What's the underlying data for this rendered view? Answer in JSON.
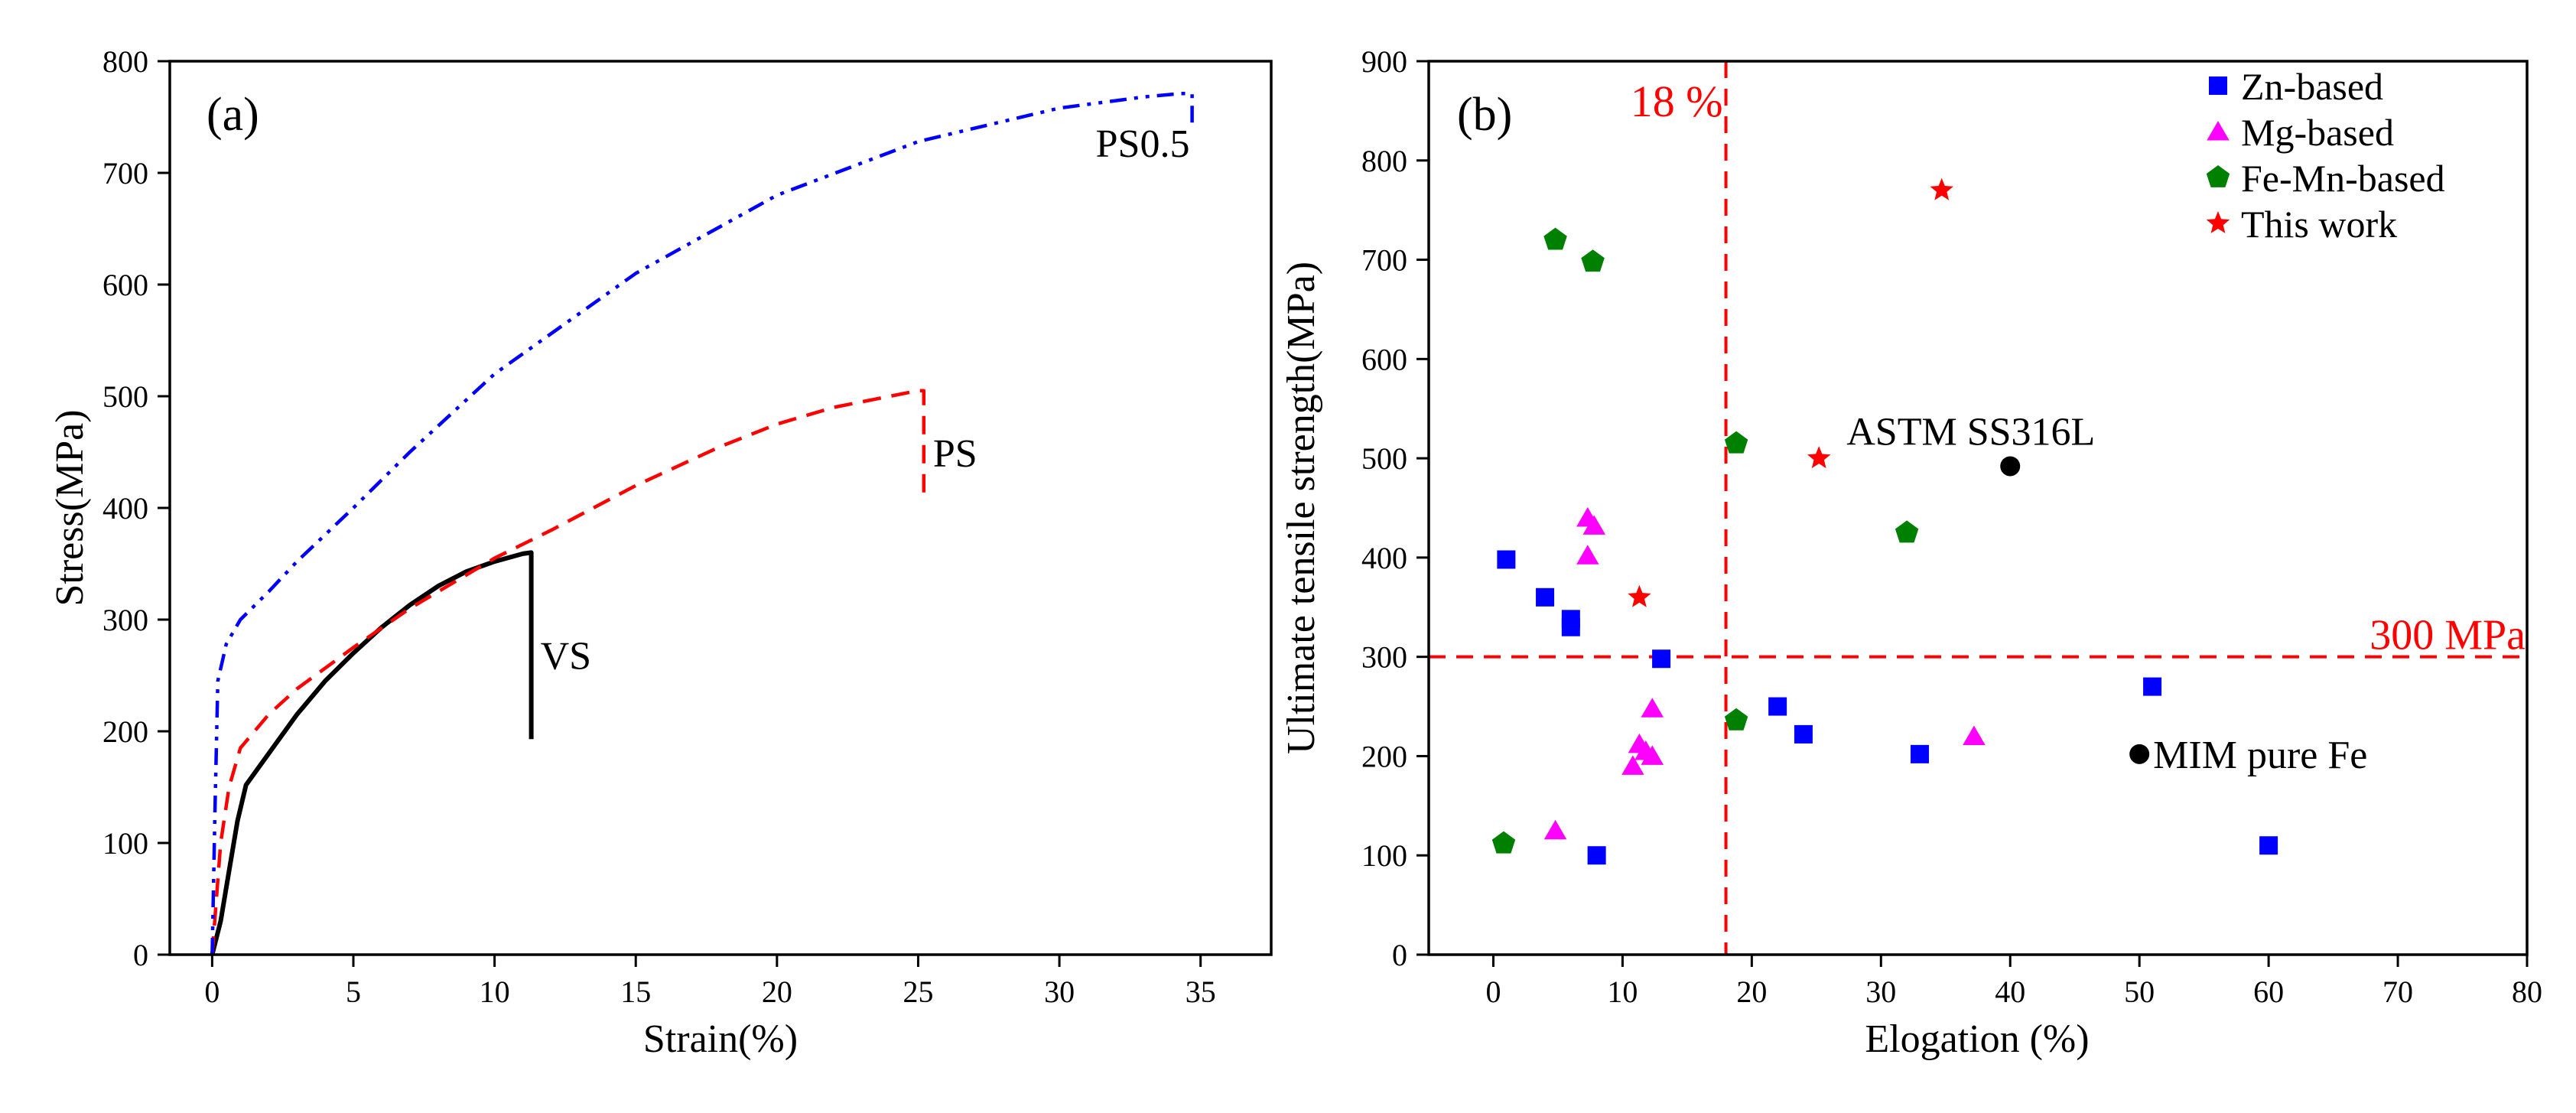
{
  "chart_data": [
    {
      "panel": "(a)",
      "type": "line",
      "title": "",
      "xlabel": "Strain(%)",
      "ylabel": "Stress(MPa)",
      "xlim": [
        -1.5,
        37.5
      ],
      "ylim": [
        0,
        800
      ],
      "xticks": [
        0,
        5,
        10,
        15,
        20,
        25,
        30,
        35
      ],
      "yticks": [
        0,
        100,
        200,
        300,
        400,
        500,
        600,
        700,
        800
      ],
      "series": [
        {
          "name": "VS",
          "color": "#000000",
          "style": "solid",
          "x": [
            0,
            0.3,
            0.6,
            0.9,
            1.2,
            2,
            3,
            4,
            5,
            6,
            7,
            8,
            9,
            10,
            11,
            11.3,
            11.3
          ],
          "y": [
            0,
            30,
            75,
            120,
            152,
            180,
            215,
            245,
            270,
            293,
            313,
            330,
            343,
            352,
            359,
            360,
            193
          ]
        },
        {
          "name": "PS",
          "color": "#ff0000",
          "style": "dashed",
          "x": [
            0,
            0.3,
            0.6,
            1,
            2,
            3,
            5,
            7,
            10,
            12,
            15,
            18,
            20,
            22,
            24,
            25,
            25.2,
            25.2
          ],
          "y": [
            0,
            100,
            150,
            185,
            215,
            238,
            275,
            310,
            355,
            380,
            420,
            455,
            475,
            490,
            500,
            505,
            505,
            410
          ]
        },
        {
          "name": "PS0.5",
          "color": "#0000ff",
          "style": "dashdotdot",
          "x": [
            0,
            0.1,
            0.2,
            0.5,
            1,
            2,
            3,
            5,
            7,
            10,
            15,
            20,
            25,
            30,
            33,
            34.3,
            34.7,
            34.7
          ],
          "y": [
            0,
            130,
            245,
            278,
            300,
            325,
            352,
            400,
            450,
            520,
            610,
            680,
            728,
            758,
            768,
            771,
            771,
            740
          ]
        }
      ]
    },
    {
      "panel": "(b)",
      "type": "scatter",
      "title": "",
      "xlabel": "Elogation (%)",
      "ylabel": "Ultimate tensile strength(MPa)",
      "xlim": [
        -5,
        80
      ],
      "ylim": [
        0,
        900
      ],
      "xticks": [
        0,
        10,
        20,
        30,
        40,
        50,
        60,
        70,
        80
      ],
      "yticks": [
        0,
        100,
        200,
        300,
        400,
        500,
        600,
        700,
        800,
        900
      ],
      "series": [
        {
          "name": "Zn-based",
          "marker": "square",
          "color": "#0000ff",
          "points": [
            [
              1,
              398
            ],
            [
              4,
              360
            ],
            [
              6,
              338
            ],
            [
              6,
              330
            ],
            [
              8,
              100
            ],
            [
              13,
              298
            ],
            [
              22,
              250
            ],
            [
              24,
              222
            ],
            [
              33,
              202
            ],
            [
              51,
              270
            ],
            [
              60,
              110
            ]
          ]
        },
        {
          "name": "Mg-based",
          "marker": "triangle",
          "color": "#ff00ff",
          "points": [
            [
              4.8,
              125
            ],
            [
              7.3,
              440
            ],
            [
              7.8,
              432
            ],
            [
              7.3,
              402
            ],
            [
              10.8,
              190
            ],
            [
              11.3,
              212
            ],
            [
              11.8,
              205
            ],
            [
              12.3,
              200
            ],
            [
              12.3,
              248
            ],
            [
              37.2,
              220
            ]
          ]
        },
        {
          "name": "Fe-Mn-based",
          "marker": "pentagon",
          "color": "#008000",
          "points": [
            [
              0.8,
              112
            ],
            [
              4.8,
              720
            ],
            [
              7.7,
              698
            ],
            [
              18.8,
              515
            ],
            [
              18.8,
              236
            ],
            [
              32,
              425
            ]
          ]
        },
        {
          "name": "This work",
          "marker": "star",
          "color": "#ff0000",
          "points": [
            [
              11.3,
              360
            ],
            [
              25.2,
              500
            ],
            [
              34.7,
              770
            ]
          ]
        }
      ],
      "references": [
        {
          "label": "ASTM SS316L",
          "x": 40,
          "y": 492
        },
        {
          "label": "MIM pure Fe",
          "x": 50,
          "y": 202
        }
      ],
      "threshold_lines": [
        {
          "axis": "x",
          "value": 18,
          "label": "18 %"
        },
        {
          "axis": "y",
          "value": 300,
          "label": "300 MPa"
        }
      ],
      "legend_position": "top-right"
    }
  ]
}
